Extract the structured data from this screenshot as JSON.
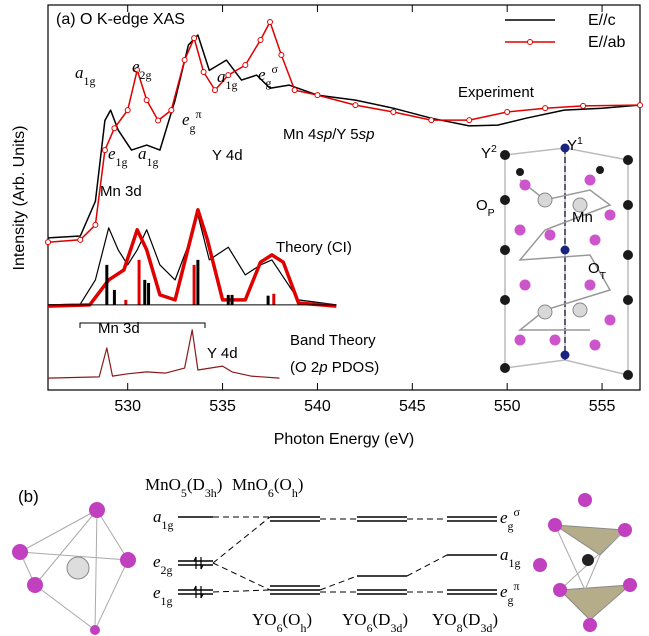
{
  "chart_data": {
    "type": "line",
    "panel_label": "(a) O K-edge XAS",
    "xlabel": "Photon Energy (eV)",
    "ylabel": "Intensity (Arb. Units)",
    "xlim": [
      525.8,
      557.0
    ],
    "ylim": [
      0,
      100
    ],
    "xticks": [
      530,
      535,
      540,
      545,
      550,
      555
    ],
    "series": [
      {
        "name": "E//c",
        "color": "#000000",
        "width": 1.5,
        "markers": false,
        "x": [
          525.8,
          527.5,
          528.3,
          528.8,
          529.1,
          529.5,
          530.2,
          531,
          531.7,
          532.5,
          533.2,
          533.7,
          534.3,
          535.2,
          536,
          536.8,
          537.5,
          538.5,
          540,
          542,
          544,
          546,
          548,
          549.5,
          551,
          553,
          555,
          557
        ],
        "values": [
          39.5,
          40,
          49,
          70,
          72.7,
          67.5,
          62.3,
          63.6,
          62.3,
          75.3,
          89.6,
          92.2,
          83,
          85.7,
          80.5,
          81.8,
          78.4,
          79.2,
          76.6,
          75.3,
          73.2,
          70.6,
          68.6,
          68.8,
          70.6,
          72.7,
          73.2,
          74
        ]
      },
      {
        "name": "E//ab",
        "color": "#e00000",
        "width": 1.5,
        "markers": true,
        "x": [
          525.8,
          527.5,
          528.3,
          528.8,
          529.3,
          530,
          530.5,
          531,
          531.6,
          532.3,
          533,
          533.5,
          534,
          534.6,
          535.3,
          536.2,
          537,
          537.5,
          538.1,
          538.8,
          540,
          542,
          544,
          546,
          548,
          550,
          552,
          554,
          557
        ],
        "values": [
          38.4,
          39,
          42.9,
          62.3,
          68,
          72.7,
          83.1,
          75.3,
          70,
          72.7,
          85.7,
          91.4,
          82.6,
          77.9,
          81.8,
          84.4,
          90.9,
          95.6,
          87,
          77.9,
          76.6,
          74,
          72.2,
          70.1,
          70.1,
          72.2,
          73.2,
          73.8,
          74
        ]
      },
      {
        "color": "#000000",
        "width": 1.2,
        "markers": false,
        "x": [
          525.8,
          527.5,
          528.3,
          529,
          529.5,
          530,
          530.5,
          531,
          531.7,
          532.5,
          533.2,
          533.7,
          534.3,
          535.3,
          536.2,
          537,
          537.6,
          538.3,
          539,
          541
        ],
        "values": [
          22.1,
          22.3,
          28.6,
          42.1,
          36.4,
          32.5,
          36.4,
          41.6,
          32.5,
          28.6,
          37.7,
          45.5,
          33.8,
          37.1,
          29.9,
          32.5,
          33.8,
          28.6,
          23.4,
          22.1
        ]
      },
      {
        "color": "#e00000",
        "width": 3.5,
        "markers": false,
        "x": [
          525.8,
          528,
          529,
          529.8,
          530.5,
          531,
          531.7,
          532.5,
          533.3,
          533.7,
          534.2,
          535,
          536.2,
          537,
          537.6,
          538.2,
          539,
          541
        ],
        "values": [
          21.8,
          22.1,
          28.6,
          31.2,
          41.6,
          36.4,
          24.7,
          23.4,
          39,
          46.8,
          39,
          23.4,
          23.4,
          33.2,
          35.1,
          33.2,
          22.6,
          21.8
        ]
      },
      {
        "color": "#8b1a1a",
        "width": 1.2,
        "markers": false,
        "x": [
          525.8,
          528.5,
          528.9,
          529.2,
          530,
          531,
          532,
          533,
          533.4,
          533.7,
          535,
          535.5,
          536.5,
          538
        ],
        "values": [
          3.1,
          3.4,
          10.9,
          3.6,
          4.2,
          4.7,
          4.4,
          5.7,
          15.6,
          5.2,
          6.2,
          4.7,
          3.6,
          3.1
        ]
      }
    ],
    "sticks": {
      "baseline": 22.1,
      "items": [
        {
          "color": "#000000",
          "x": [
            528.9,
            529.3,
            530.9,
            531.1,
            533.7,
            535.3,
            535.5,
            537.4
          ],
          "values": [
            32.5,
            26,
            28.6,
            27.8,
            33.8,
            24.7,
            24.7,
            24.5
          ]
        },
        {
          "color": "#e00000",
          "x": [
            529.9,
            530.6,
            533.5,
            537.7
          ],
          "values": [
            23.4,
            33.8,
            32.5,
            25
          ]
        }
      ]
    },
    "annotations": [
      [
        {
          "i": "a"
        },
        {
          "sub": "1g"
        }
      ],
      [
        {
          "i": "e"
        },
        {
          "sub": "2g"
        }
      ],
      [
        {
          "i": "e"
        },
        {
          "sub": "g"
        },
        {
          "sup": "π"
        }
      ],
      [
        {
          "i": "a"
        },
        {
          "sub": "1g"
        }
      ],
      [
        {
          "i": "e"
        },
        {
          "sub": "g"
        },
        {
          "sup": "σ"
        }
      ],
      [
        {
          "t": "Experiment"
        }
      ],
      [
        {
          "t": "Mn 4"
        },
        {
          "i": "sp"
        },
        {
          "t": "/Y 5"
        },
        {
          "i": "sp"
        }
      ],
      [
        {
          "i": "e"
        },
        {
          "sub": "1g"
        }
      ],
      [
        {
          "i": "a"
        },
        {
          "sub": "1g"
        }
      ],
      [
        {
          "t": "Y 4d"
        }
      ],
      [
        {
          "t": "Mn 3d"
        }
      ],
      [
        {
          "t": "Theory (CI)"
        }
      ],
      [
        {
          "t": "Mn 3d"
        }
      ],
      [
        {
          "t": "Y 4d"
        }
      ],
      [
        {
          "t": "Band Theory"
        }
      ],
      [
        {
          "t": "(O 2"
        },
        {
          "i": "p"
        },
        {
          "t": " PDOS)"
        }
      ]
    ],
    "structure_labels": [
      [
        {
          "t": "Y"
        },
        {
          "sup": "2"
        }
      ],
      [
        {
          "t": "Y"
        },
        {
          "sup": "1"
        }
      ],
      [
        {
          "t": "O"
        },
        {
          "sub": "P"
        }
      ],
      [
        {
          "t": "Mn"
        }
      ],
      [
        {
          "t": "O"
        },
        {
          "sub": "T"
        }
      ]
    ]
  },
  "panel_b": {
    "label": "(b)",
    "labels": [
      [
        {
          "t": "MnO"
        },
        {
          "sub": "5"
        },
        {
          "t": "(D"
        },
        {
          "sub": "3h"
        },
        {
          "t": ")"
        }
      ],
      [
        {
          "t": "MnO"
        },
        {
          "sub": "6"
        },
        {
          "t": "(O"
        },
        {
          "sub": "h"
        },
        {
          "t": ")"
        }
      ],
      [
        {
          "i": "a"
        },
        {
          "sub": "1g"
        }
      ],
      [
        {
          "i": "e"
        },
        {
          "sub": "2g"
        }
      ],
      [
        {
          "i": "e"
        },
        {
          "sub": "1g"
        }
      ],
      [
        {
          "i": "e"
        },
        {
          "sub": "g"
        },
        {
          "sup": "σ"
        }
      ],
      [
        {
          "i": "a"
        },
        {
          "sub": "1g"
        }
      ],
      [
        {
          "i": "e"
        },
        {
          "sub": "g"
        },
        {
          "sup": "π"
        }
      ],
      [
        {
          "t": "YO"
        },
        {
          "sub": "6"
        },
        {
          "t": "(O"
        },
        {
          "sub": "h"
        },
        {
          "t": ")"
        }
      ],
      [
        {
          "t": "YO"
        },
        {
          "sub": "6"
        },
        {
          "t": "(D"
        },
        {
          "sub": "3d"
        },
        {
          "t": ")"
        }
      ],
      [
        {
          "t": "YO"
        },
        {
          "sub": "8"
        },
        {
          "t": "(D"
        },
        {
          "sub": "3d"
        },
        {
          "t": ")"
        }
      ]
    ]
  }
}
